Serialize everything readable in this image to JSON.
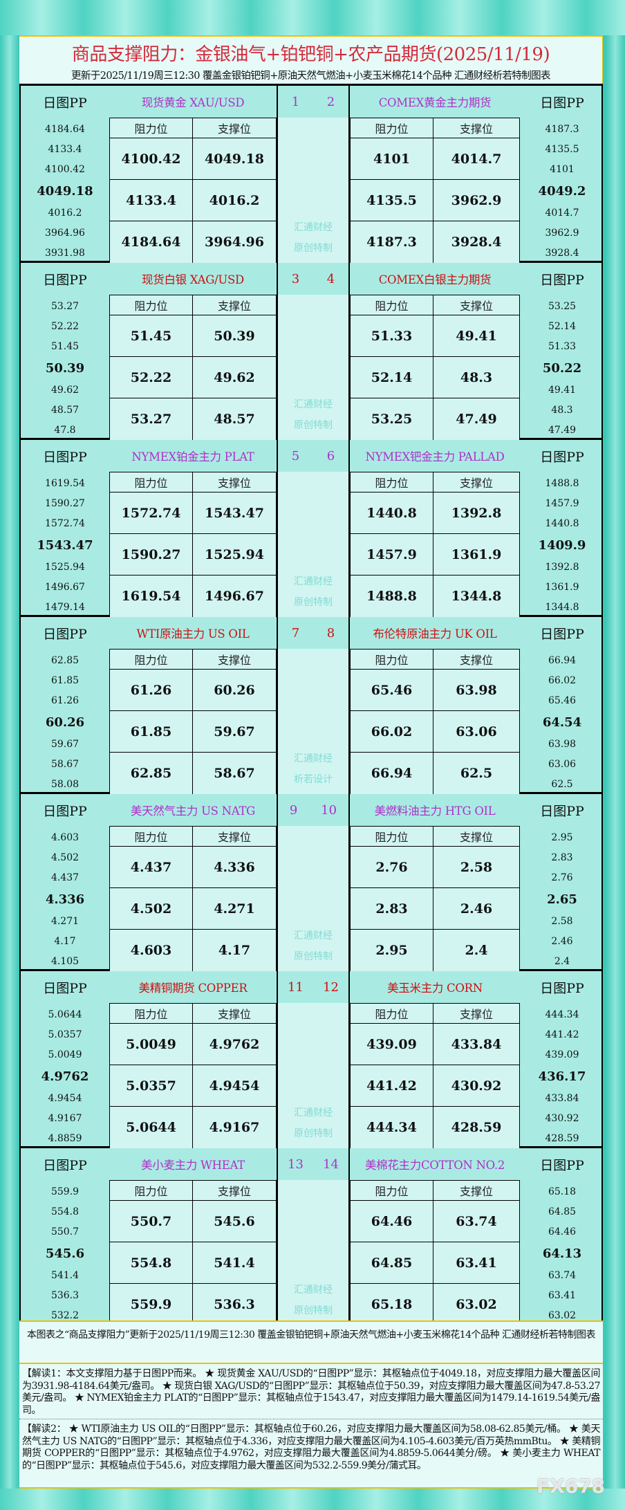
{
  "title": "商品支撑阻力：金银油气+铂钯铜+农产品期货(2025/11/19)",
  "subtitle": "更新于2025/11/19周三12:30  覆盖金银铂钯铜+原油天然气燃油+小麦玉米棉花14个品种  汇通财经析若特制图表",
  "labels": {
    "pp": "日图PP",
    "resistance": "阻力位",
    "support": "支撑位"
  },
  "colors": {
    "purple": "#b030c8",
    "red": "#cc1010",
    "title": "#d42a3a",
    "watermark": "#7fdcd2"
  },
  "blocks": [
    {
      "color": "#b030c8",
      "nums": [
        "1",
        "2"
      ],
      "watermark": [
        "汇通财经",
        "原创特制"
      ],
      "left": {
        "name": "现货黄金 XAU/USD",
        "pp": [
          "4184.64",
          "4133.4",
          "4100.42",
          "4049.18",
          "4016.2",
          "3964.96",
          "3931.98"
        ],
        "rows": [
          [
            "4100.42",
            "4049.18"
          ],
          [
            "4133.4",
            "4016.2"
          ],
          [
            "4184.64",
            "3964.96"
          ]
        ]
      },
      "right": {
        "name": "COMEX黄金主力期货",
        "pp": [
          "4187.3",
          "4135.5",
          "4101",
          "4049.2",
          "4014.7",
          "3962.9",
          "3928.4"
        ],
        "rows": [
          [
            "4101",
            "4014.7"
          ],
          [
            "4135.5",
            "3962.9"
          ],
          [
            "4187.3",
            "3928.4"
          ]
        ]
      }
    },
    {
      "color": "#cc1010",
      "nums": [
        "3",
        "4"
      ],
      "watermark": [
        "汇通财经",
        "原创特制"
      ],
      "left": {
        "name": "现货白银 XAG/USD",
        "pp": [
          "53.27",
          "52.22",
          "51.45",
          "50.39",
          "49.62",
          "48.57",
          "47.8"
        ],
        "rows": [
          [
            "51.45",
            "50.39"
          ],
          [
            "52.22",
            "49.62"
          ],
          [
            "53.27",
            "48.57"
          ]
        ]
      },
      "right": {
        "name": "COMEX白银主力期货",
        "pp": [
          "53.25",
          "52.14",
          "51.33",
          "50.22",
          "49.41",
          "48.3",
          "47.49"
        ],
        "rows": [
          [
            "51.33",
            "49.41"
          ],
          [
            "52.14",
            "48.3"
          ],
          [
            "53.25",
            "47.49"
          ]
        ]
      }
    },
    {
      "color": "#b030c8",
      "nums": [
        "5",
        "6"
      ],
      "watermark": [
        "汇通财经",
        "原创特制"
      ],
      "left": {
        "name": "NYMEX铂金主力 PLAT",
        "pp": [
          "1619.54",
          "1590.27",
          "1572.74",
          "1543.47",
          "1525.94",
          "1496.67",
          "1479.14"
        ],
        "rows": [
          [
            "1572.74",
            "1543.47"
          ],
          [
            "1590.27",
            "1525.94"
          ],
          [
            "1619.54",
            "1496.67"
          ]
        ]
      },
      "right": {
        "name": "NYMEX钯金主力 PALLAD",
        "pp": [
          "1488.8",
          "1457.9",
          "1440.8",
          "1409.9",
          "1392.8",
          "1361.9",
          "1344.8"
        ],
        "rows": [
          [
            "1440.8",
            "1392.8"
          ],
          [
            "1457.9",
            "1361.9"
          ],
          [
            "1488.8",
            "1344.8"
          ]
        ]
      }
    },
    {
      "color": "#cc1010",
      "nums": [
        "7",
        "8"
      ],
      "watermark": [
        "汇通财经",
        "析若设计"
      ],
      "left": {
        "name": "WTI原油主力 US OIL",
        "pp": [
          "62.85",
          "61.85",
          "61.26",
          "60.26",
          "59.67",
          "58.67",
          "58.08"
        ],
        "rows": [
          [
            "61.26",
            "60.26"
          ],
          [
            "61.85",
            "59.67"
          ],
          [
            "62.85",
            "58.67"
          ]
        ]
      },
      "right": {
        "name": "布伦特原油主力 UK OIL",
        "pp": [
          "66.94",
          "66.02",
          "65.46",
          "64.54",
          "63.98",
          "63.06",
          "62.5"
        ],
        "rows": [
          [
            "65.46",
            "63.98"
          ],
          [
            "66.02",
            "63.06"
          ],
          [
            "66.94",
            "62.5"
          ]
        ]
      }
    },
    {
      "color": "#b030c8",
      "nums": [
        "9",
        "10"
      ],
      "watermark": [
        "汇通财经",
        "原创特制"
      ],
      "left": {
        "name": "美天然气主力 US NATG",
        "pp": [
          "4.603",
          "4.502",
          "4.437",
          "4.336",
          "4.271",
          "4.17",
          "4.105"
        ],
        "rows": [
          [
            "4.437",
            "4.336"
          ],
          [
            "4.502",
            "4.271"
          ],
          [
            "4.603",
            "4.17"
          ]
        ]
      },
      "right": {
        "name": "美燃料油主力 HTG OIL",
        "pp": [
          "2.95",
          "2.83",
          "2.76",
          "2.65",
          "2.58",
          "2.46",
          "2.4"
        ],
        "rows": [
          [
            "2.76",
            "2.58"
          ],
          [
            "2.83",
            "2.46"
          ],
          [
            "2.95",
            "2.4"
          ]
        ]
      }
    },
    {
      "color": "#cc1010",
      "nums": [
        "11",
        "12"
      ],
      "watermark": [
        "汇通财经",
        "原创特制"
      ],
      "left": {
        "name": "美精铜期货 COPPER",
        "pp": [
          "5.0644",
          "5.0357",
          "5.0049",
          "4.9762",
          "4.9454",
          "4.9167",
          "4.8859"
        ],
        "rows": [
          [
            "5.0049",
            "4.9762"
          ],
          [
            "5.0357",
            "4.9454"
          ],
          [
            "5.0644",
            "4.9167"
          ]
        ]
      },
      "right": {
        "name": "美玉米主力 CORN",
        "pp": [
          "444.34",
          "441.42",
          "439.09",
          "436.17",
          "433.84",
          "430.92",
          "428.59"
        ],
        "rows": [
          [
            "439.09",
            "433.84"
          ],
          [
            "441.42",
            "430.92"
          ],
          [
            "444.34",
            "428.59"
          ]
        ]
      }
    },
    {
      "color": "#b030c8",
      "nums": [
        "13",
        "14"
      ],
      "watermark": [
        "汇通财经",
        "原创特制"
      ],
      "left": {
        "name": "美小麦主力 WHEAT",
        "pp": [
          "559.9",
          "554.8",
          "550.7",
          "545.6",
          "541.4",
          "536.3",
          "532.2"
        ],
        "rows": [
          [
            "550.7",
            "545.6"
          ],
          [
            "554.8",
            "541.4"
          ],
          [
            "559.9",
            "536.3"
          ]
        ]
      },
      "right": {
        "name": "美棉花主力COTTON NO.2",
        "pp": [
          "65.18",
          "64.85",
          "64.46",
          "64.13",
          "63.74",
          "63.41",
          "63.02"
        ],
        "rows": [
          [
            "64.46",
            "63.74"
          ],
          [
            "64.85",
            "63.41"
          ],
          [
            "65.18",
            "63.02"
          ]
        ]
      }
    }
  ],
  "footer": {
    "note": "本图表之“商品支撑阻力”更新于2025/11/19周三12:30 覆盖金银铂钯铜+原油天然气燃油+小麦玉米棉花14个品种 汇通财经析若特制图表",
    "interp1": "【解读1：本文支撑阻力基于日图PP而来。 ★ 现货黄金 XAU/USD的“日图PP”显示：其枢轴点位于4049.18，对应支撑阻力最大覆盖区间为3931.98-4184.64美元/盎司。 ★ 现货白银 XAG/USD的“日图PP”显示：其枢轴点位于50.39，对应支撑阻力最大覆盖区间为47.8-53.27美元/盎司。 ★ NYMEX铂金主力 PLAT的“日图PP”显示：其枢轴点位于1543.47，对应支撑阻力最大覆盖区间为1479.14-1619.54美元/盎司。",
    "interp2": "【解读2： ★ WTI原油主力 US OIL的“日图PP”显示：其枢轴点位于60.26，对应支撑阻力最大覆盖区间为58.08-62.85美元/桶。 ★ 美天然气主力 US NATG的“日图PP”显示：其枢轴点位于4.336，对应支撑阻力最大覆盖区间为4.105-4.603美元/百万英热mmBtu。 ★ 美精铜期货 COPPER的“日图PP”显示：其枢轴点位于4.9762，对应支撑阻力最大覆盖区间为4.8859-5.0644美分/磅。 ★ 美小麦主力 WHEAT的“日图PP”显示：其枢轴点位于545.6，对应支撑阻力最大覆盖区间为532.2-559.9美分/蒲式耳。",
    "watermark": "FX678"
  }
}
